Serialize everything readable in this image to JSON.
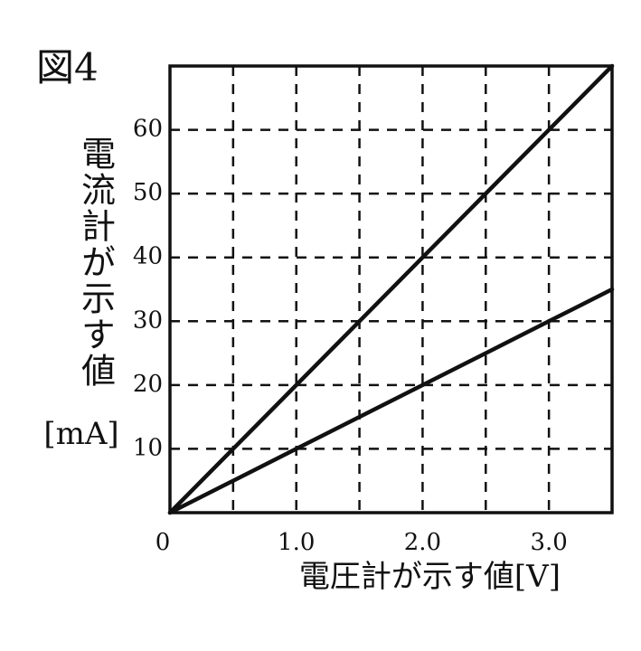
{
  "chart_data": {
    "type": "line",
    "title": "図4",
    "ylabel": "電流計が示す値",
    "yunit": "[mA]",
    "xlabel": "電圧計が示す値[V]",
    "x": [
      0,
      0.5,
      1,
      1.5,
      2,
      2.5,
      3,
      3.5
    ],
    "series": [
      {
        "color": "#111111",
        "values": [
          0,
          10,
          20,
          30,
          40,
          50,
          60,
          70
        ]
      },
      {
        "color": "#111111",
        "values": [
          0,
          5,
          10,
          15,
          20,
          25,
          30,
          35
        ]
      }
    ],
    "xlim": [
      0,
      3.5
    ],
    "ylim": [
      0,
      70
    ],
    "xticks": [
      {
        "value": 0,
        "label": "0"
      },
      {
        "value": 0.5,
        "label": null
      },
      {
        "value": 1,
        "label": "1.0"
      },
      {
        "value": 1.5,
        "label": null
      },
      {
        "value": 2,
        "label": "2.0"
      },
      {
        "value": 2.5,
        "label": null
      },
      {
        "value": 3,
        "label": "3.0"
      }
    ],
    "yticks": [
      10,
      20,
      30,
      40,
      50,
      60
    ],
    "grid": true
  }
}
